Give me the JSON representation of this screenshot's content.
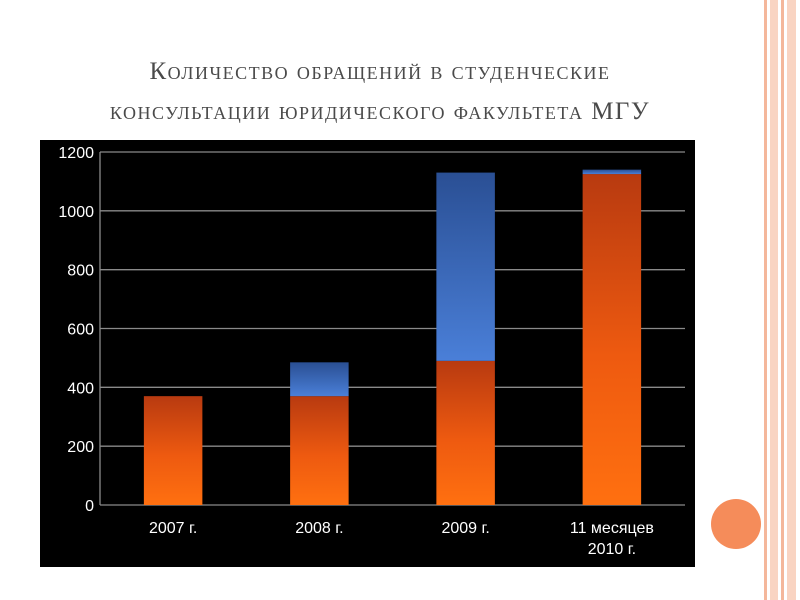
{
  "slide": {
    "title_line1": "Количество обращений в студенческие",
    "title_line2": "консультации юридического факультета МГУ"
  },
  "colors": {
    "stripe_outer": "#f4b79b",
    "stripe_inner": "#f9d4c2",
    "circle": "#f58c5a",
    "bar_orange": "#ff6a10",
    "bar_blue": "#3a6bc7",
    "chart_bg": "#000000",
    "grid": "#8a8a8a",
    "text": "#ffffff"
  },
  "chart_data": {
    "type": "bar",
    "stacked": true,
    "categories": [
      [
        "2007 г."
      ],
      [
        "2008 г."
      ],
      [
        "2009 г."
      ],
      [
        "11 месяцев",
        "2010 г."
      ]
    ],
    "series": [
      {
        "color": "orange",
        "values": [
          370,
          370,
          490,
          1125
        ]
      },
      {
        "color": "blue",
        "values": [
          0,
          115,
          640,
          15
        ]
      }
    ],
    "ylim": [
      0,
      1200
    ],
    "yticks": [
      0,
      200,
      400,
      600,
      800,
      1000,
      1200
    ],
    "grid": true,
    "legend": "none"
  }
}
